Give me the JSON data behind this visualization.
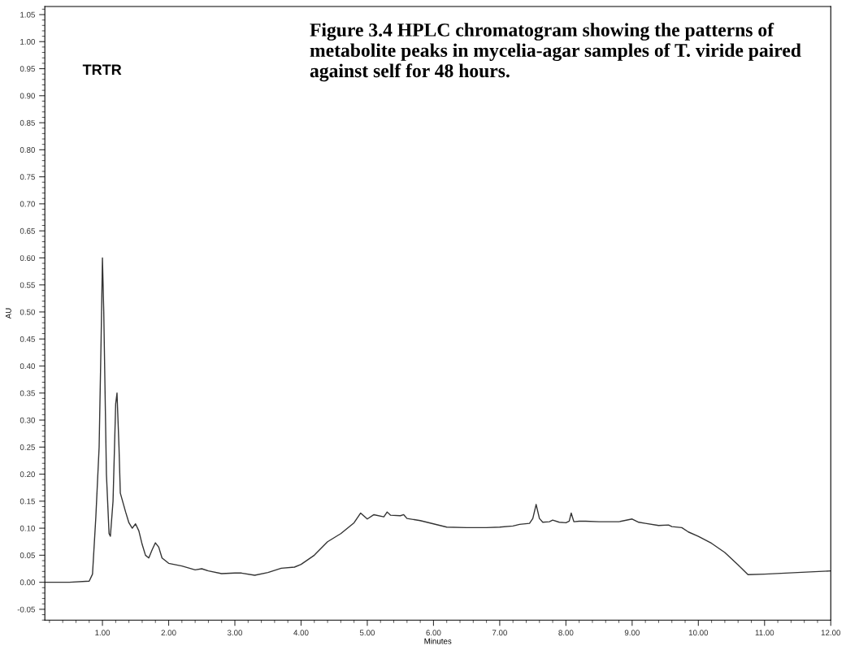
{
  "chart_data": {
    "type": "line",
    "title": "Figure 3.4 HPLC chromatogram showing the patterns of metabolite peaks in mycelia-agar samples of T. viride paired against self for 48 hours.",
    "xlabel": "Minutes",
    "ylabel": "AU",
    "annotations": [
      "TRTR"
    ],
    "series": [
      {
        "color": "#333333",
        "x": [
          0.13,
          0.5,
          0.8,
          0.85,
          0.9,
          0.95,
          0.98,
          1.0,
          1.02,
          1.06,
          1.1,
          1.12,
          1.16,
          1.2,
          1.22,
          1.25,
          1.27,
          1.35,
          1.4,
          1.45,
          1.5,
          1.55,
          1.6,
          1.65,
          1.7,
          1.75,
          1.8,
          1.85,
          1.9,
          2.0,
          2.2,
          2.4,
          2.5,
          2.6,
          2.8,
          3.0,
          3.1,
          3.3,
          3.5,
          3.7,
          3.9,
          4.0,
          4.2,
          4.4,
          4.6,
          4.8,
          4.9,
          5.0,
          5.1,
          5.25,
          5.3,
          5.35,
          5.5,
          5.55,
          5.6,
          5.8,
          6.0,
          6.2,
          6.5,
          6.8,
          7.0,
          7.2,
          7.3,
          7.45,
          7.5,
          7.55,
          7.6,
          7.65,
          7.75,
          7.8,
          7.9,
          8.0,
          8.05,
          8.08,
          8.12,
          8.2,
          8.3,
          8.5,
          8.8,
          9.0,
          9.1,
          9.2,
          9.4,
          9.55,
          9.6,
          9.75,
          9.85,
          10.0,
          10.2,
          10.4,
          10.6,
          10.75,
          11.0,
          11.5,
          12.0
        ],
        "values": [
          0.0,
          0.0,
          0.002,
          0.015,
          0.12,
          0.25,
          0.45,
          0.6,
          0.5,
          0.2,
          0.09,
          0.085,
          0.15,
          0.33,
          0.35,
          0.25,
          0.165,
          0.13,
          0.11,
          0.1,
          0.108,
          0.095,
          0.07,
          0.05,
          0.045,
          0.06,
          0.073,
          0.065,
          0.045,
          0.035,
          0.03,
          0.023,
          0.025,
          0.021,
          0.016,
          0.017,
          0.017,
          0.013,
          0.018,
          0.026,
          0.028,
          0.033,
          0.05,
          0.075,
          0.09,
          0.11,
          0.128,
          0.117,
          0.125,
          0.121,
          0.13,
          0.124,
          0.123,
          0.125,
          0.118,
          0.114,
          0.108,
          0.102,
          0.101,
          0.101,
          0.102,
          0.104,
          0.107,
          0.109,
          0.118,
          0.144,
          0.118,
          0.111,
          0.112,
          0.115,
          0.111,
          0.11,
          0.113,
          0.128,
          0.112,
          0.113,
          0.113,
          0.112,
          0.112,
          0.117,
          0.111,
          0.109,
          0.105,
          0.106,
          0.103,
          0.101,
          0.093,
          0.085,
          0.072,
          0.055,
          0.032,
          0.014,
          0.015,
          0.018,
          0.021
        ]
      }
    ],
    "xlim": [
      0.13,
      12.0
    ],
    "ylim": [
      -0.07,
      1.065
    ],
    "xticks": [
      {
        "value": 1,
        "label": "1.00"
      },
      {
        "value": 2,
        "label": "2.00"
      },
      {
        "value": 3,
        "label": "3.00"
      },
      {
        "value": 4,
        "label": "4.00"
      },
      {
        "value": 5,
        "label": "5.00"
      },
      {
        "value": 6,
        "label": "6.00"
      },
      {
        "value": 7,
        "label": "7.00"
      },
      {
        "value": 8,
        "label": "8.00"
      },
      {
        "value": 9,
        "label": "9.00"
      },
      {
        "value": 10,
        "label": "10.00"
      },
      {
        "value": 11,
        "label": "11.00"
      },
      {
        "value": 12,
        "label": "12.00"
      }
    ],
    "yticks": [
      {
        "value": -0.05,
        "label": "-0.05"
      },
      {
        "value": 0,
        "label": "0.00"
      },
      {
        "value": 0.05,
        "label": "0.05"
      },
      {
        "value": 0.1,
        "label": "0.10"
      },
      {
        "value": 0.15,
        "label": "0.15"
      },
      {
        "value": 0.2,
        "label": "0.20"
      },
      {
        "value": 0.25,
        "label": "0.25"
      },
      {
        "value": 0.3,
        "label": "0.30"
      },
      {
        "value": 0.35,
        "label": "0.35"
      },
      {
        "value": 0.4,
        "label": "0.40"
      },
      {
        "value": 0.45,
        "label": "0.45"
      },
      {
        "value": 0.5,
        "label": "0.50"
      },
      {
        "value": 0.55,
        "label": "0.55"
      },
      {
        "value": 0.6,
        "label": "0.60"
      },
      {
        "value": 0.65,
        "label": "0.65"
      },
      {
        "value": 0.7,
        "label": "0.70"
      },
      {
        "value": 0.75,
        "label": "0.75"
      },
      {
        "value": 0.8,
        "label": "0.80"
      },
      {
        "value": 0.85,
        "label": "0.85"
      },
      {
        "value": 0.9,
        "label": "0.90"
      },
      {
        "value": 0.95,
        "label": "0.95"
      },
      {
        "value": 1.0,
        "label": "1.00"
      },
      {
        "value": 1.05,
        "label": "1.05"
      }
    ],
    "grid": false,
    "legend": false,
    "marker": "none",
    "line_style": "solid"
  }
}
